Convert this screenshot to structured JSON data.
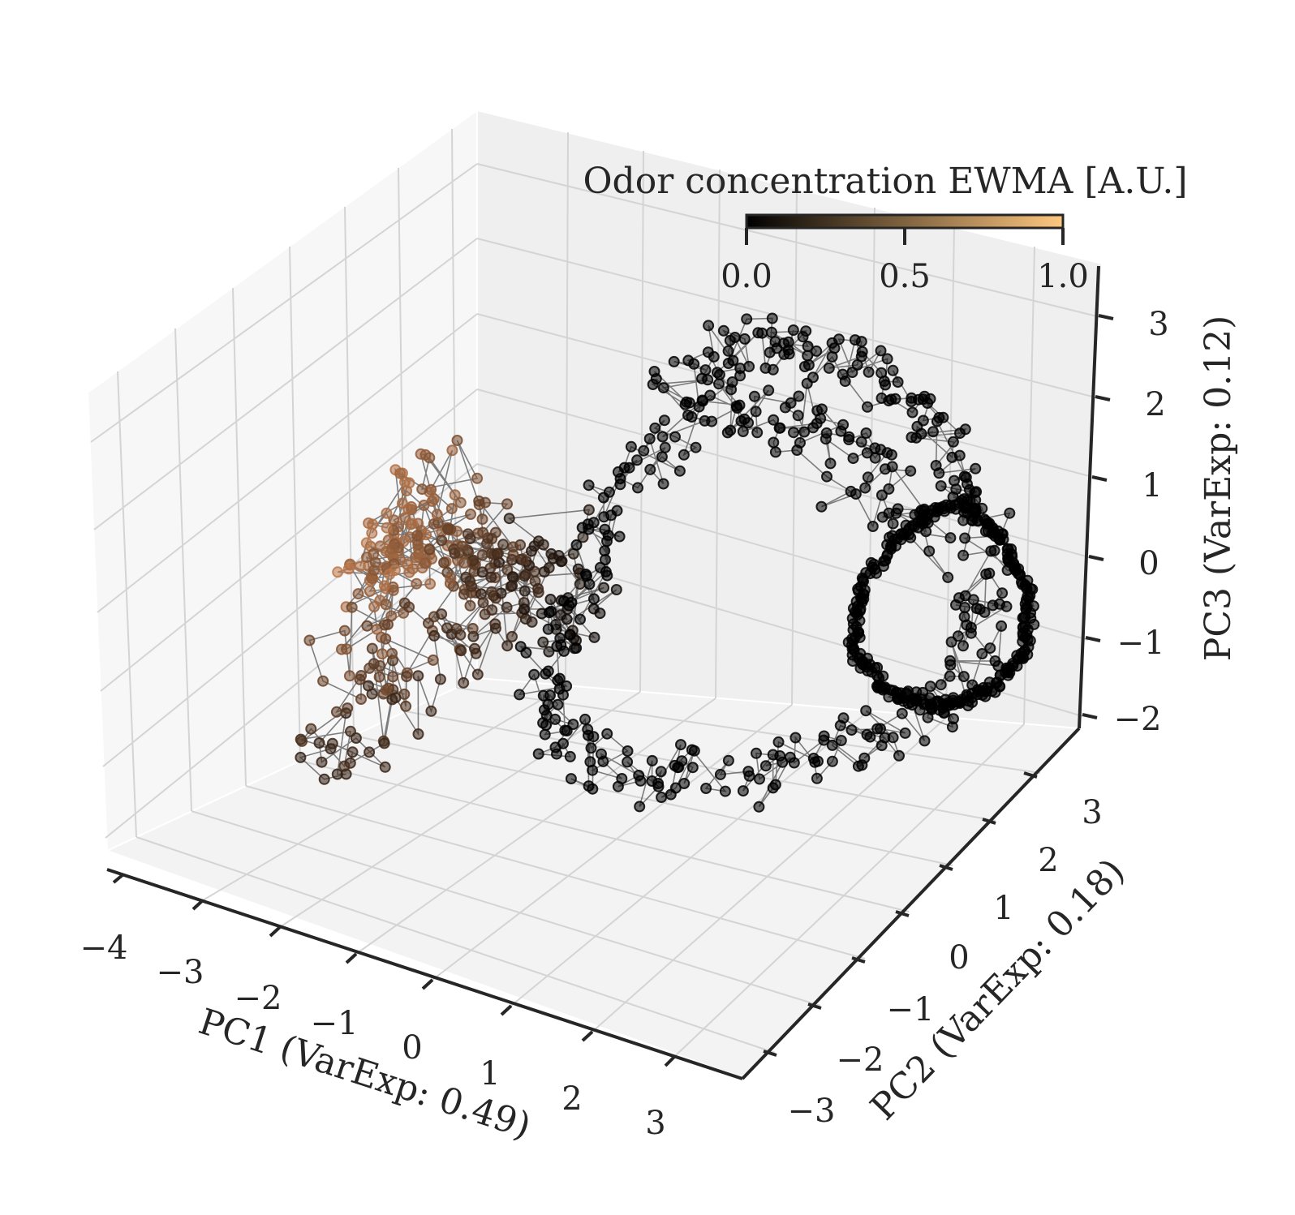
{
  "chart_data": {
    "type": "scatter",
    "subtype": "3d-trajectory",
    "title": "",
    "xlabel": "PC1 (VarExp: 0.49)",
    "ylabel": "PC2 (VarExp: 0.18)",
    "zlabel": "PC3 (VarExp: 0.12)",
    "xlim": [
      -4,
      3.7
    ],
    "ylim": [
      -3.2,
      3.8
    ],
    "zlim": [
      -2.2,
      3.6
    ],
    "x_ticks": [
      "−4",
      "−3",
      "−2",
      "−1",
      "0",
      "1",
      "2",
      "3"
    ],
    "y_ticks": [
      "−3",
      "−2",
      "−1",
      "0",
      "1",
      "2",
      "3"
    ],
    "z_ticks": [
      "−2",
      "−1",
      "0",
      "1",
      "2",
      "3"
    ],
    "grid": true,
    "colorbar": {
      "label": "Odor concentration EWMA [A.U.]",
      "ticks": [
        "0.0",
        "0.5",
        "1.0"
      ],
      "range": [
        0,
        1
      ],
      "cmap": "copper",
      "color_low": "#000000",
      "color_high": "#ffc77f",
      "placement": "top-right, horizontal"
    },
    "marker_color_low": "#000000",
    "marker_color_high": "#c87f4f",
    "line_color": "#555555",
    "series": [
      {
        "structure": "high-odor cluster",
        "points": [
          [
            -2.8,
            -1.5,
            0.9,
            0.8
          ],
          [
            -2.6,
            -1.2,
            1.2,
            0.75
          ],
          [
            -2.9,
            -1.8,
            0.6,
            0.85
          ],
          [
            -2.4,
            -1.0,
            1.0,
            0.7
          ],
          [
            -3.0,
            -1.4,
            1.3,
            0.9
          ],
          [
            -2.7,
            -2.0,
            0.4,
            0.65
          ],
          [
            -2.5,
            -1.6,
            1.5,
            0.7
          ],
          [
            -2.2,
            -1.1,
            0.7,
            0.5
          ],
          [
            -2.0,
            -1.3,
            1.1,
            0.45
          ],
          [
            -1.8,
            -0.9,
            0.8,
            0.35
          ],
          [
            -1.5,
            -1.2,
            0.5,
            0.25
          ],
          [
            -1.2,
            -0.8,
            0.9,
            0.15
          ],
          [
            -2.3,
            -1.9,
            0.2,
            0.55
          ],
          [
            -2.6,
            -2.3,
            -0.3,
            0.4
          ],
          [
            -3.1,
            -1.7,
            0.8,
            0.95
          ],
          [
            -2.9,
            -0.9,
            1.6,
            0.8
          ],
          [
            -2.1,
            -0.7,
            1.4,
            0.5
          ],
          [
            -1.7,
            -1.6,
            0.3,
            0.3
          ],
          [
            -2.4,
            -2.5,
            -0.6,
            0.3
          ],
          [
            -2.8,
            -2.7,
            -1.0,
            0.25
          ],
          [
            -3.2,
            -2.2,
            0.1,
            0.6
          ],
          [
            -1.4,
            -0.5,
            1.2,
            0.2
          ],
          [
            -1.0,
            -1.0,
            0.2,
            0.1
          ],
          [
            -0.8,
            -0.6,
            0.6,
            0.05
          ]
        ]
      },
      {
        "structure": "outer shell",
        "points": [
          [
            -0.5,
            0.5,
            2.6,
            0
          ],
          [
            0.0,
            1.0,
            2.9,
            0
          ],
          [
            0.6,
            1.4,
            3.0,
            0
          ],
          [
            1.2,
            1.8,
            2.7,
            0
          ],
          [
            1.8,
            2.3,
            2.0,
            0
          ],
          [
            2.2,
            2.6,
            1.0,
            0
          ],
          [
            2.4,
            2.8,
            0.0,
            0
          ],
          [
            2.3,
            2.7,
            -1.0,
            0
          ],
          [
            1.9,
            2.3,
            -1.7,
            0
          ],
          [
            1.2,
            1.6,
            -2.0,
            0
          ],
          [
            0.4,
            0.8,
            -2.1,
            0
          ],
          [
            -0.4,
            0.0,
            -1.9,
            0
          ],
          [
            -1.0,
            -0.6,
            -1.4,
            0
          ],
          [
            -1.3,
            -0.9,
            -0.6,
            0
          ],
          [
            -1.0,
            -0.4,
            0.6,
            0
          ],
          [
            -0.9,
            0.1,
            1.6,
            0
          ],
          [
            -0.2,
            0.6,
            2.2,
            0
          ],
          [
            0.8,
            1.2,
            2.4,
            0
          ],
          [
            1.6,
            1.8,
            1.6,
            0
          ],
          [
            2.0,
            2.2,
            0.5,
            0
          ]
        ]
      },
      {
        "structure": "inner loop",
        "points": [
          [
            1.9,
            2.9,
            0.6,
            0
          ],
          [
            2.3,
            3.2,
            0.1,
            0
          ],
          [
            2.6,
            3.4,
            -0.6,
            0
          ],
          [
            2.6,
            3.3,
            -1.3,
            0
          ],
          [
            2.3,
            3.0,
            -1.7,
            0
          ],
          [
            1.9,
            2.6,
            -1.8,
            0
          ],
          [
            1.5,
            2.2,
            -1.5,
            0
          ],
          [
            1.2,
            1.9,
            -0.9,
            0
          ],
          [
            1.2,
            2.0,
            -0.2,
            0
          ],
          [
            1.5,
            2.4,
            0.4,
            0
          ]
        ]
      }
    ]
  }
}
